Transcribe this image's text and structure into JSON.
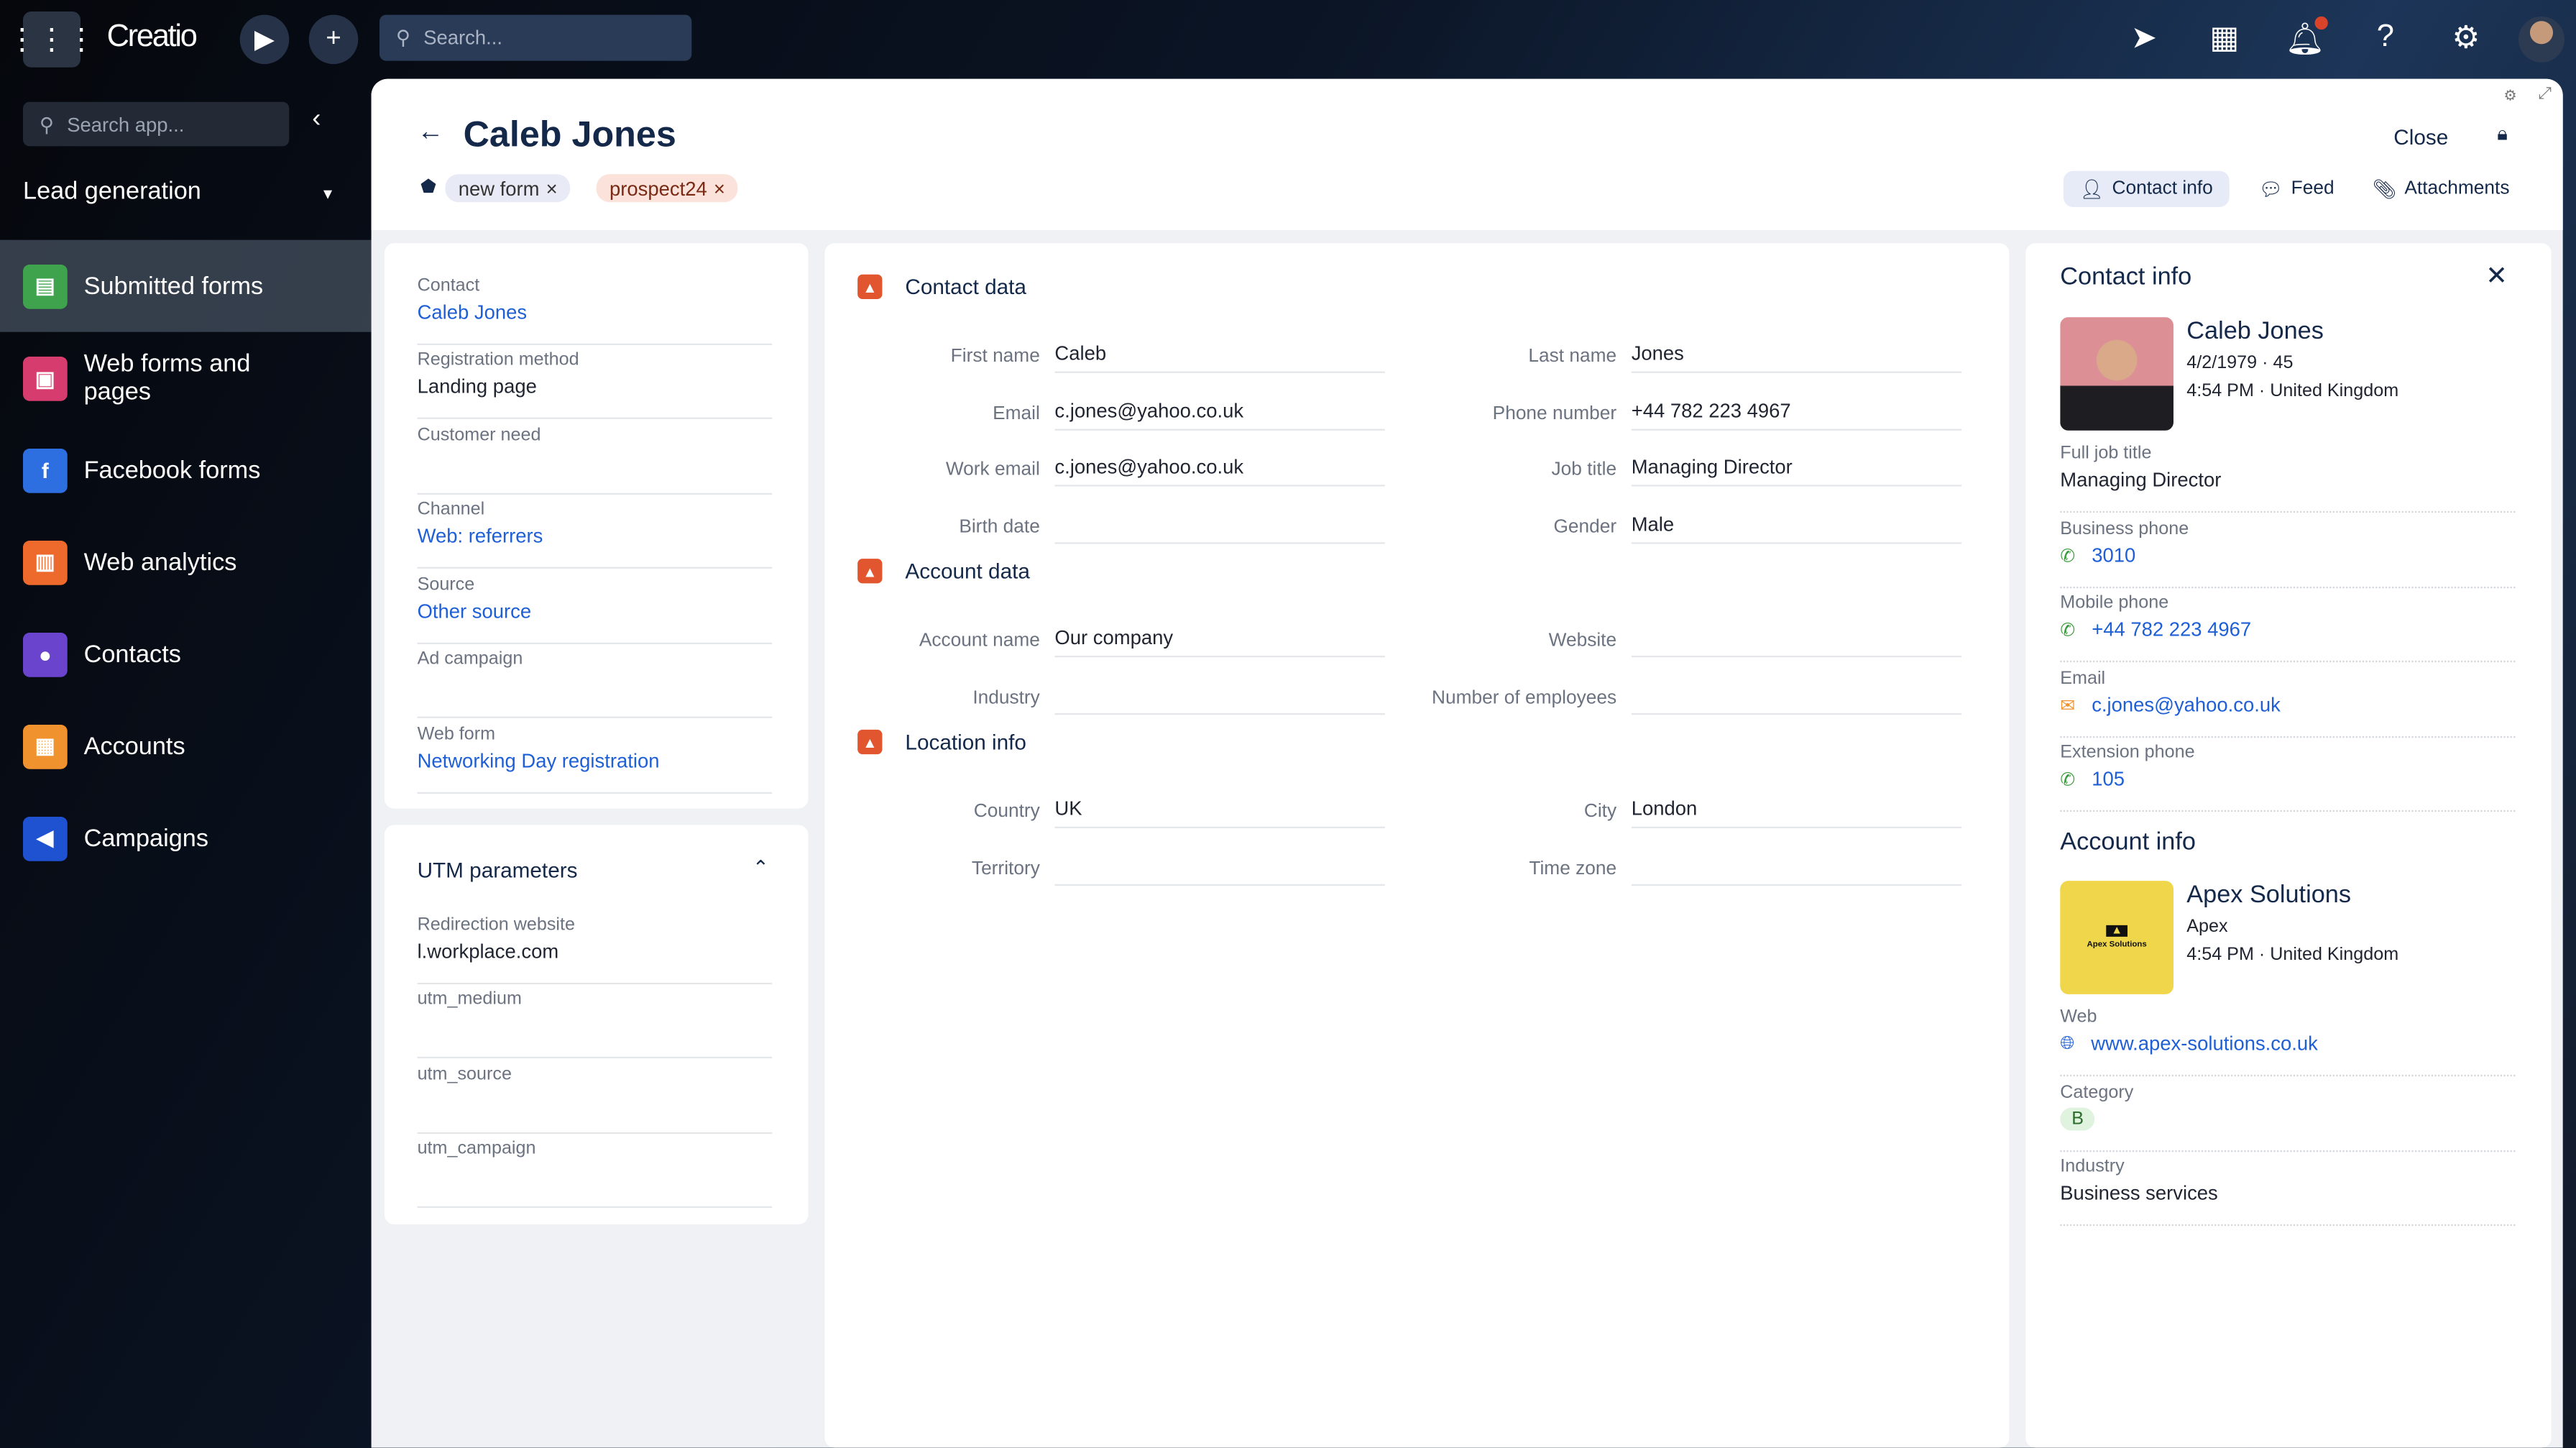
{
  "topbar": {
    "logo": "Creatio",
    "search_placeholder": "Search...",
    "notification_dot_color": "#d9432a"
  },
  "sidebar": {
    "search_placeholder": "Search app...",
    "workspace": "Lead generation",
    "items": [
      {
        "label": "Submitted forms",
        "color": "#3fa34d",
        "icon": "form-icon"
      },
      {
        "label": "Web forms and pages",
        "color": "#d63c6e",
        "icon": "webform-icon"
      },
      {
        "label": "Facebook forms",
        "color": "#2d6fe0",
        "icon": "facebook-icon"
      },
      {
        "label": "Web analytics",
        "color": "#ee6a2c",
        "icon": "analytics-icon"
      },
      {
        "label": "Contacts",
        "color": "#6a44cc",
        "icon": "person-icon"
      },
      {
        "label": "Accounts",
        "color": "#f0922e",
        "icon": "building-icon"
      },
      {
        "label": "Campaigns",
        "color": "#1f52d0",
        "icon": "megaphone-icon"
      }
    ]
  },
  "header": {
    "title": "Caleb Jones",
    "close": "Close",
    "tags": [
      "new form",
      "prospect24"
    ],
    "tabs": [
      "Contact info",
      "Feed",
      "Attachments"
    ]
  },
  "left": {
    "fields": [
      {
        "label": "Contact",
        "value": "Caleb Jones"
      },
      {
        "label": "Registration method",
        "value": "Landing page"
      },
      {
        "label": "Customer need",
        "value": ""
      },
      {
        "label": "Channel",
        "value": "Web: referrers"
      },
      {
        "label": "Source",
        "value": "Other source"
      },
      {
        "label": "Ad campaign",
        "value": ""
      },
      {
        "label": "Web form",
        "value": "Networking Day registration"
      }
    ],
    "utm_title": "UTM parameters",
    "utm": [
      {
        "label": "Redirection website",
        "value": "l.workplace.com"
      },
      {
        "label": "utm_medium",
        "value": ""
      },
      {
        "label": "utm_source",
        "value": ""
      },
      {
        "label": "utm_campaign",
        "value": ""
      }
    ]
  },
  "middle": {
    "sections": [
      "Contact data",
      "Account data",
      "Location info"
    ],
    "contact": [
      {
        "label": "First name",
        "value": "Caleb"
      },
      {
        "label": "Last name",
        "value": "Jones"
      },
      {
        "label": "Email",
        "value": "c.jones@yahoo.co.uk"
      },
      {
        "label": "Phone number",
        "value": "+44 782 223 4967"
      },
      {
        "label": "Work email",
        "value": "c.jones@yahoo.co.uk"
      },
      {
        "label": "Job title",
        "value": "Managing Director"
      },
      {
        "label": "Birth date",
        "value": ""
      },
      {
        "label": "Gender",
        "value": "Male"
      }
    ],
    "account": [
      {
        "label": "Account name",
        "value": "Our company"
      },
      {
        "label": "Website",
        "value": ""
      },
      {
        "label": "Industry",
        "value": ""
      },
      {
        "label": "Number of employees",
        "value": ""
      }
    ],
    "location": [
      {
        "label": "Country",
        "value": "UK"
      },
      {
        "label": "City",
        "value": "London"
      },
      {
        "label": "Territory",
        "value": ""
      },
      {
        "label": "Time zone",
        "value": ""
      }
    ]
  },
  "right": {
    "title": "Contact info",
    "name": "Caleb Jones",
    "birth": "4/2/1979 · 45",
    "time": "4:54 PM · United Kingdom",
    "fields": [
      {
        "label": "Full job title",
        "value": "Managing Director"
      },
      {
        "label": "Business phone",
        "value": "3010"
      },
      {
        "label": "Mobile phone",
        "value": "+44 782 223 4967"
      },
      {
        "label": "Email",
        "value": "c.jones@yahoo.co.uk"
      },
      {
        "label": "Extension phone",
        "value": "105"
      }
    ],
    "account_title": "Account info",
    "account_name": "Apex Solutions",
    "account_logo_text": "Apex Solutions",
    "account_short": "Apex",
    "account_time": "4:54 PM · United Kingdom",
    "web_label": "Web",
    "web": "www.apex-solutions.co.uk",
    "category_label": "Category",
    "category": "B",
    "industry_label": "Industry",
    "industry": "Business services"
  }
}
